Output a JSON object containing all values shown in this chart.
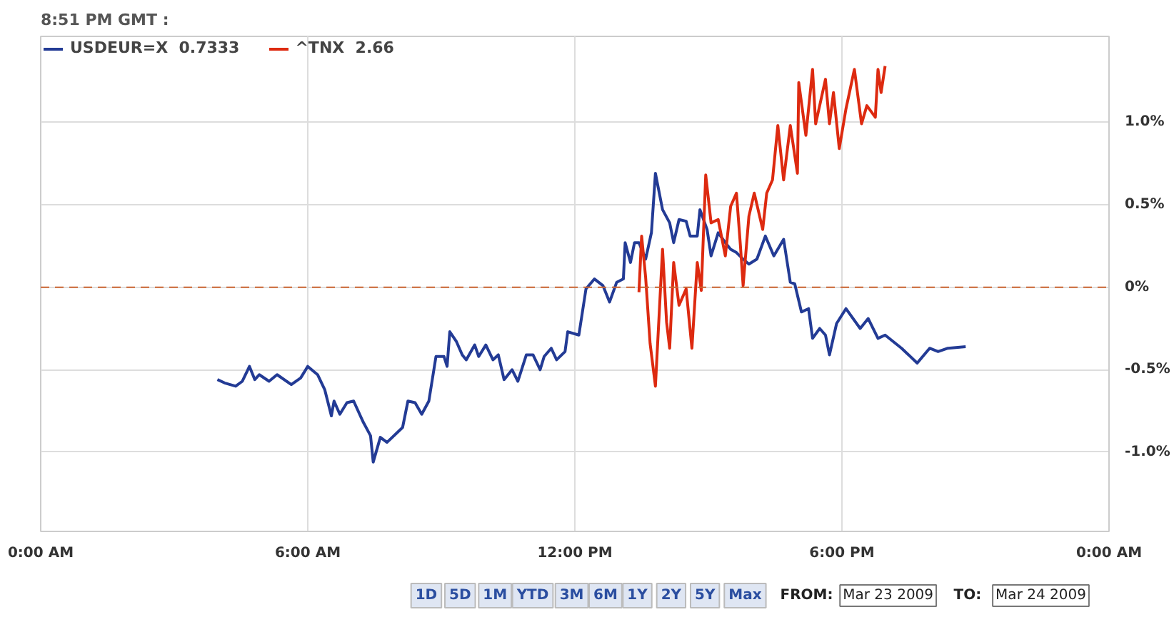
{
  "chart_data": {
    "type": "line",
    "subtitle": "8:51 PM GMT :",
    "xlim": [
      0,
      24
    ],
    "ylim": [
      -1.48,
      1.52
    ],
    "xticks": [
      {
        "value": 0,
        "label": "0:00 AM"
      },
      {
        "value": 6,
        "label": "6:00 AM"
      },
      {
        "value": 12,
        "label": "12:00 PM"
      },
      {
        "value": 18,
        "label": "6:00 PM"
      },
      {
        "value": 24,
        "label": "0:00 AM"
      }
    ],
    "yticks": [
      {
        "value": -1.0,
        "label": "-1.0%"
      },
      {
        "value": -0.5,
        "label": "-0.5%"
      },
      {
        "value": 0,
        "label": "0%"
      },
      {
        "value": 0.5,
        "label": "0.5%"
      },
      {
        "value": 1.0,
        "label": "1.0%"
      }
    ],
    "grid": true,
    "legend": "top left",
    "line_style": "solid",
    "ref_lines": [
      {
        "axis": "y",
        "value": 0,
        "color": "#cc6633",
        "line_style": "dashed"
      }
    ],
    "series": [
      {
        "name": "USDEUR=X  0.7333",
        "color": "#233b95",
        "x": [
          3.97,
          4.13,
          4.38,
          4.53,
          4.69,
          4.81,
          4.91,
          5.13,
          5.31,
          5.63,
          5.84,
          6.0,
          6.22,
          6.38,
          6.53,
          6.59,
          6.72,
          6.88,
          7.03,
          7.25,
          7.41,
          7.47,
          7.63,
          7.78,
          8.13,
          8.25,
          8.41,
          8.56,
          8.72,
          8.88,
          9.06,
          9.13,
          9.19,
          9.34,
          9.47,
          9.56,
          9.75,
          9.84,
          10.0,
          10.16,
          10.28,
          10.41,
          10.59,
          10.72,
          10.91,
          11.06,
          11.22,
          11.31,
          11.47,
          11.59,
          11.78,
          11.84,
          12.09,
          12.25,
          12.44,
          12.63,
          12.78,
          12.94,
          13.09,
          13.13,
          13.25,
          13.34,
          13.44,
          13.59,
          13.72,
          13.81,
          13.97,
          14.13,
          14.22,
          14.34,
          14.5,
          14.59,
          14.75,
          14.81,
          14.97,
          15.06,
          15.22,
          15.38,
          15.5,
          15.63,
          15.78,
          15.91,
          16.09,
          16.28,
          16.47,
          16.69,
          16.84,
          16.94,
          17.09,
          17.25,
          17.34,
          17.5,
          17.63,
          17.72,
          17.88,
          18.09,
          18.41,
          18.59,
          18.81,
          18.97,
          19.34,
          19.69,
          19.97,
          20.16,
          20.38,
          20.78
        ],
        "values": [
          -0.56,
          -0.58,
          -0.6,
          -0.57,
          -0.48,
          -0.56,
          -0.53,
          -0.57,
          -0.53,
          -0.59,
          -0.55,
          -0.48,
          -0.53,
          -0.62,
          -0.78,
          -0.69,
          -0.77,
          -0.7,
          -0.69,
          -0.82,
          -0.9,
          -1.06,
          -0.91,
          -0.94,
          -0.85,
          -0.69,
          -0.7,
          -0.77,
          -0.69,
          -0.42,
          -0.42,
          -0.48,
          -0.27,
          -0.33,
          -0.41,
          -0.44,
          -0.35,
          -0.42,
          -0.35,
          -0.44,
          -0.41,
          -0.56,
          -0.5,
          -0.57,
          -0.41,
          -0.41,
          -0.5,
          -0.42,
          -0.37,
          -0.44,
          -0.39,
          -0.27,
          -0.29,
          -0.01,
          0.05,
          0.01,
          -0.09,
          0.03,
          0.05,
          0.27,
          0.15,
          0.27,
          0.27,
          0.17,
          0.33,
          0.69,
          0.47,
          0.39,
          0.27,
          0.41,
          0.4,
          0.31,
          0.31,
          0.47,
          0.35,
          0.19,
          0.33,
          0.27,
          0.23,
          0.21,
          0.17,
          0.14,
          0.17,
          0.31,
          0.19,
          0.29,
          0.03,
          0.02,
          -0.15,
          -0.13,
          -0.31,
          -0.25,
          -0.29,
          -0.41,
          -0.22,
          -0.13,
          -0.25,
          -0.19,
          -0.31,
          -0.29,
          -0.37,
          -0.46,
          -0.37,
          -0.39,
          -0.37,
          -0.36
        ]
      },
      {
        "name": "^TNX  2.66",
        "color": "#dd2a10",
        "x": [
          13.44,
          13.5,
          13.59,
          13.69,
          13.81,
          13.97,
          14.06,
          14.13,
          14.22,
          14.34,
          14.5,
          14.63,
          14.75,
          14.84,
          14.94,
          15.06,
          15.22,
          15.38,
          15.5,
          15.63,
          15.72,
          15.78,
          15.91,
          16.03,
          16.22,
          16.31,
          16.44,
          16.56,
          16.69,
          16.84,
          17.0,
          17.03,
          17.19,
          17.34,
          17.41,
          17.63,
          17.72,
          17.81,
          17.94,
          18.09,
          18.28,
          18.44,
          18.56,
          18.75,
          18.81,
          18.88,
          18.97
        ],
        "values": [
          -0.03,
          0.31,
          0.06,
          -0.34,
          -0.6,
          0.23,
          -0.21,
          -0.37,
          0.15,
          -0.11,
          -0.01,
          -0.37,
          0.15,
          -0.02,
          0.68,
          0.39,
          0.41,
          0.19,
          0.49,
          0.57,
          0.25,
          0.01,
          0.43,
          0.57,
          0.35,
          0.57,
          0.65,
          0.98,
          0.65,
          0.98,
          0.69,
          1.24,
          0.92,
          1.32,
          0.99,
          1.26,
          0.99,
          1.18,
          0.84,
          1.08,
          1.32,
          0.99,
          1.1,
          1.03,
          1.32,
          1.18,
          1.34
        ]
      }
    ],
    "annotations": [
      "1D",
      "5D",
      "1M",
      "YTD",
      "3M",
      "6M",
      "1Y",
      "2Y",
      "5Y",
      "Max",
      "FROM:",
      "Mar 23 2009",
      "TO:",
      "Mar 24 2009"
    ]
  }
}
